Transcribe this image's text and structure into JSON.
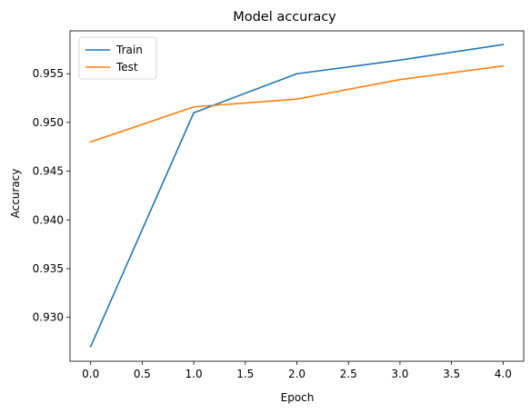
{
  "chart_data": {
    "type": "line",
    "title": "Model accuracy",
    "xlabel": "Epoch",
    "ylabel": "Accuracy",
    "x": [
      0,
      1,
      2,
      3,
      4
    ],
    "xlim": [
      -0.2,
      4.2
    ],
    "ylim": [
      0.9255,
      0.9594
    ],
    "xticks": [
      0.0,
      0.5,
      1.0,
      1.5,
      2.0,
      2.5,
      3.0,
      3.5,
      4.0
    ],
    "xtick_labels": [
      "0.0",
      "0.5",
      "1.0",
      "1.5",
      "2.0",
      "2.5",
      "3.0",
      "3.5",
      "4.0"
    ],
    "yticks": [
      0.93,
      0.935,
      0.94,
      0.945,
      0.95,
      0.955
    ],
    "ytick_labels": [
      "0.930",
      "0.935",
      "0.940",
      "0.945",
      "0.950",
      "0.955"
    ],
    "grid": false,
    "legend_position": "upper-left",
    "series": [
      {
        "name": "Train",
        "color": "#1f77b4",
        "values": [
          0.927,
          0.951,
          0.955,
          0.9564,
          0.958
        ]
      },
      {
        "name": "Test",
        "color": "#ff7f0e",
        "values": [
          0.948,
          0.9516,
          0.9524,
          0.9544,
          0.9558
        ]
      }
    ]
  }
}
